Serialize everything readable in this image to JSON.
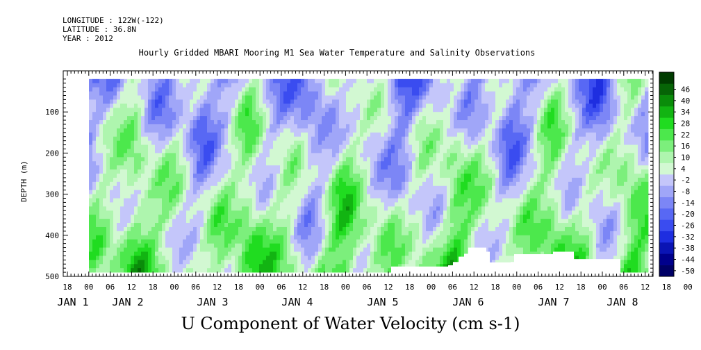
{
  "header": {
    "longitude": "LONGITUDE : 122W(-122)",
    "latitude": "LATITUDE : 36.8N",
    "year": "YEAR : 2012"
  },
  "chart_data": {
    "type": "heatmap",
    "title": "Hourly Gridded MBARI Mooring M1 Sea Water Temperature and Salinity Observations",
    "bottom_title": "U Component of Water Velocity (cm s-1)",
    "ylabel": "DEPTH (m)",
    "xlabel": "",
    "y_axis": {
      "range": [
        0,
        500
      ],
      "inverted": true,
      "ticks": [
        100,
        200,
        300,
        400,
        500
      ]
    },
    "x_axis": {
      "hour_ticks": [
        "18",
        "00",
        "06",
        "12",
        "18",
        "00",
        "06",
        "12",
        "18",
        "00",
        "06",
        "12",
        "18",
        "00",
        "06",
        "12",
        "18",
        "00",
        "06",
        "12",
        "18",
        "00",
        "06",
        "12",
        "18",
        "00",
        "06",
        "12",
        "18",
        "00",
        "06",
        "12"
      ],
      "day_labels": [
        "JAN 1",
        "JAN 2",
        "JAN 3",
        "JAN 4",
        "JAN 5",
        "JAN 6",
        "JAN 7",
        "JAN 8"
      ]
    },
    "colorbar": {
      "levels": [
        -50,
        -44,
        -38,
        -32,
        -26,
        -20,
        -14,
        -8,
        -2,
        4,
        10,
        16,
        22,
        28,
        34,
        40,
        46
      ],
      "colors": [
        "#000066",
        "#00008c",
        "#0a14b4",
        "#1e2ee0",
        "#3a4cf0",
        "#5868f4",
        "#7c86f6",
        "#a0a6f8",
        "#c4c6fa",
        "#d2f8d2",
        "#aef5ae",
        "#7cef7c",
        "#4ce84c",
        "#20dc20",
        "#12b412",
        "#0a8c0a",
        "#066406",
        "#003c00"
      ]
    }
  }
}
